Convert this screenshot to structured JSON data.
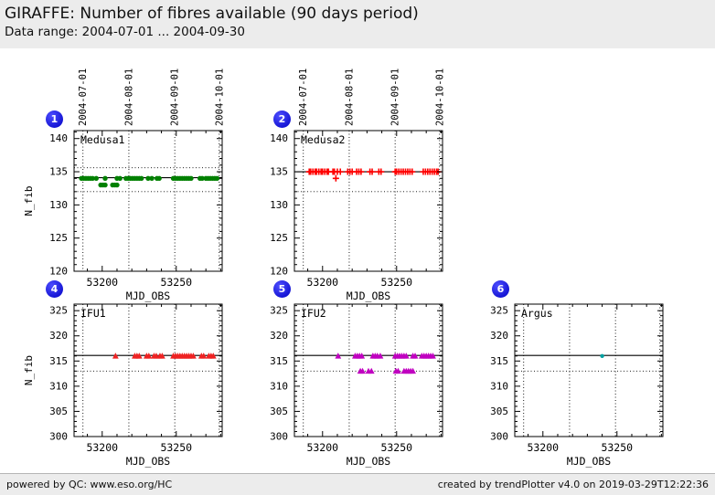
{
  "header": {
    "title": "GIRAFFE: Number of fibres available (90 days period)",
    "subtitle": "Data range: 2004-07-01 ... 2004-09-30"
  },
  "footer": {
    "left": "powered by QC: www.eso.org/HC",
    "right": "created by trendPlotter v4.0 on 2019-03-29T12:22:36"
  },
  "colors": {
    "header_bg": "#ececec",
    "footer_bg": "#ececec",
    "badge_blue": "#0000c4",
    "medusa1_green": "#008000",
    "medusa2_red": "#ff0000",
    "ifu1_red": "#ee2222",
    "ifu2_magenta": "#c000c0",
    "argus_teal": "#00a0a0"
  },
  "chart_data": [
    {
      "type": "scatter",
      "badge": "1",
      "label": "Medusa1",
      "row": 1,
      "marker": "circle",
      "color": "#008000",
      "xlabel": "MJD_OBS",
      "ylabel": "N_fib",
      "show_ylabel": true,
      "xlim": [
        53181,
        53281
      ],
      "ylim": [
        120,
        141.2
      ],
      "xticks": [
        53200,
        53250
      ],
      "yticks": [
        120,
        125,
        130,
        135,
        140
      ],
      "minor_x_step": 10,
      "minor_y_step": 1,
      "grid_x": [
        53187,
        53218,
        53249,
        53279
      ],
      "top_dates": [
        "2004-07-01",
        "2004-08-01",
        "2004-09-01",
        "2004-10-01"
      ],
      "solid_line": 134.1,
      "dotted_lines": [
        135.6,
        132
      ],
      "series": [
        {
          "value": 134,
          "mjd": [
            53186,
            53187.5,
            53189,
            53190.5,
            53192,
            53193.5,
            53196,
            53202,
            53210,
            53212,
            53216,
            53217.5,
            53219,
            53220.5,
            53222,
            53223.5,
            53225,
            53226.5,
            53231,
            53233.5,
            53237,
            53238.5,
            53248,
            53249.5,
            53251,
            53252.5,
            53254,
            53255.5,
            53257,
            53258.5,
            53260,
            53266,
            53267.5,
            53270,
            53271.5,
            53273,
            53274.5,
            53276,
            53277.5
          ]
        },
        {
          "value": 133,
          "mjd": [
            53199,
            53200.5,
            53202,
            53207,
            53208.5,
            53210
          ]
        }
      ]
    },
    {
      "type": "scatter",
      "badge": "2",
      "label": "Medusa2",
      "row": 1,
      "marker": "plus",
      "color": "#ff0000",
      "xlabel": "MJD_OBS",
      "ylabel": "N_fib",
      "show_ylabel": false,
      "xlim": [
        53181,
        53281
      ],
      "ylim": [
        120,
        141.2
      ],
      "xticks": [
        53200,
        53250
      ],
      "yticks": [
        120,
        125,
        130,
        135,
        140
      ],
      "minor_x_step": 10,
      "minor_y_step": 1,
      "grid_x": [
        53187,
        53218,
        53249,
        53279
      ],
      "top_dates": [
        "2004-07-01",
        "2004-08-01",
        "2004-09-01",
        "2004-10-01"
      ],
      "solid_line": 135,
      "dotted_lines": [
        132
      ],
      "series": [
        {
          "value": 135,
          "mjd": [
            53191,
            53192,
            53193.5,
            53195,
            53196,
            53197.5,
            53199,
            53200,
            53201.5,
            53203,
            53204,
            53207,
            53208,
            53210,
            53212,
            53217,
            53218.5,
            53220,
            53223,
            53224.5,
            53226,
            53232,
            53233.5,
            53238,
            53239.5,
            53249,
            53250,
            53251.5,
            53253,
            53254.5,
            53256,
            53257.5,
            53259,
            53260.5,
            53268,
            53269.5,
            53271,
            53272.5,
            53274,
            53275.5,
            53277,
            53278
          ]
        },
        {
          "value": 134,
          "mjd": [
            53209
          ]
        }
      ]
    },
    {
      "type": "scatter",
      "badge": "4",
      "label": "IFU1",
      "row": 2,
      "marker": "triangle",
      "color": "#ee2222",
      "xlabel": "MJD_OBS",
      "ylabel": "N_fib",
      "show_ylabel": true,
      "xlim": [
        53181,
        53281
      ],
      "ylim": [
        300,
        326.3
      ],
      "xticks": [
        53200,
        53250
      ],
      "yticks": [
        300,
        305,
        310,
        315,
        320,
        325
      ],
      "minor_x_step": 10,
      "minor_y_step": 1,
      "grid_x": [
        53187,
        53218,
        53249,
        53279
      ],
      "top_dates": [],
      "solid_line": 316.1,
      "dotted_lines": [
        313
      ],
      "series": [
        {
          "value": 316,
          "mjd": [
            53209,
            53222,
            53223.5,
            53225,
            53230,
            53231.5,
            53235,
            53236.5,
            53239,
            53240.5,
            53248,
            53249.5,
            53251,
            53252.5,
            53254,
            53255.5,
            53257,
            53258.5,
            53260,
            53261.5,
            53267,
            53268.5,
            53272,
            53273.5,
            53275
          ]
        }
      ]
    },
    {
      "type": "scatter",
      "badge": "5",
      "label": "IFU2",
      "row": 2,
      "marker": "triangle",
      "color": "#c000c0",
      "xlabel": "MJD_OBS",
      "ylabel": "N_fib",
      "show_ylabel": false,
      "xlim": [
        53181,
        53281
      ],
      "ylim": [
        300,
        326.3
      ],
      "xticks": [
        53200,
        53250
      ],
      "yticks": [
        300,
        305,
        310,
        315,
        320,
        325
      ],
      "minor_x_step": 10,
      "minor_y_step": 1,
      "grid_x": [
        53187,
        53218,
        53249,
        53279
      ],
      "top_dates": [],
      "solid_line": 316.1,
      "dotted_lines": [
        313
      ],
      "series": [
        {
          "value": 316,
          "mjd": [
            53210.5,
            53222,
            53223.5,
            53225,
            53226.5,
            53234,
            53235.5,
            53237,
            53239,
            53249,
            53250.5,
            53252,
            53253.5,
            53255,
            53256.5,
            53261,
            53262.5,
            53267,
            53268.5,
            53270,
            53271.5,
            53273,
            53274.5
          ]
        },
        {
          "value": 313,
          "mjd": [
            53225.5,
            53227,
            53231,
            53233,
            53249.5,
            53251,
            53255,
            53256.5,
            53258,
            53259.5,
            53261
          ]
        }
      ]
    },
    {
      "type": "scatter",
      "badge": "6",
      "label": "Argus",
      "row": 2,
      "marker": "dot",
      "color": "#00a0a0",
      "xlabel": "MJD_OBS",
      "ylabel": "N_fib",
      "show_ylabel": false,
      "xlim": [
        53181,
        53281
      ],
      "ylim": [
        300,
        326.3
      ],
      "xticks": [
        53200,
        53250
      ],
      "yticks": [
        300,
        305,
        310,
        315,
        320,
        325
      ],
      "minor_x_step": 10,
      "minor_y_step": 1,
      "grid_x": [
        53187,
        53218,
        53249,
        53279
      ],
      "top_dates": [],
      "solid_line": 316.1,
      "dotted_lines": [
        313
      ],
      "series": [
        {
          "value": 316,
          "mjd": [
            53240
          ]
        }
      ]
    }
  ]
}
